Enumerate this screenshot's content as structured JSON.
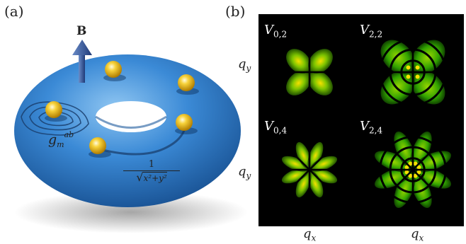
{
  "panel_a": {
    "label": "(a)",
    "magnetic_field_label": "B",
    "metric_symbol": "g",
    "metric_sub": "m",
    "metric_sup": "ab",
    "coulomb_numerator": "1",
    "coulomb_denominator": "x²+y²",
    "colors": {
      "torus": "#2f7fc8",
      "particle": "#f2c21a",
      "arrow": "#3a5a9a"
    }
  },
  "panel_b": {
    "label": "(b)",
    "plots": [
      {
        "name": "V",
        "sub": "0,2"
      },
      {
        "name": "V",
        "sub": "2,2"
      },
      {
        "name": "V",
        "sub": "0,4"
      },
      {
        "name": "V",
        "sub": "2,4"
      }
    ],
    "y_axis_label": "q",
    "y_axis_sub": "y",
    "x_axis_label": "q",
    "x_axis_sub": "x",
    "colors": {
      "background": "#000000",
      "lobe": "#2fa000",
      "peak": "#f5e000"
    }
  }
}
